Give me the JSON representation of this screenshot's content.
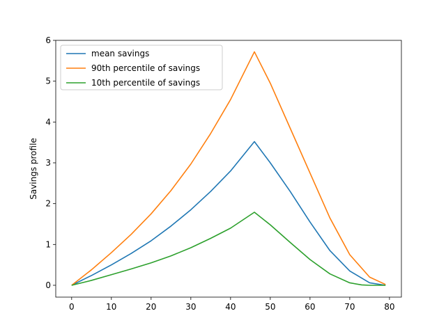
{
  "chart_data": {
    "type": "line",
    "title": "",
    "xlabel": "",
    "ylabel": "Savings profile",
    "xlim": [
      -4,
      83
    ],
    "ylim": [
      -0.29,
      6.0
    ],
    "xticks": [
      0,
      10,
      20,
      30,
      40,
      50,
      60,
      70,
      80
    ],
    "yticks": [
      0,
      1,
      2,
      3,
      4,
      5,
      6
    ],
    "grid": false,
    "legend_position": "upper-left",
    "series": [
      {
        "name": "mean savings",
        "color": "#1f77b4",
        "x": [
          0,
          5,
          10,
          15,
          20,
          25,
          30,
          35,
          40,
          46,
          50,
          55,
          60,
          65,
          70,
          75,
          79
        ],
        "values": [
          0,
          0.24,
          0.5,
          0.78,
          1.09,
          1.45,
          1.85,
          2.3,
          2.8,
          3.52,
          3.0,
          2.3,
          1.55,
          0.85,
          0.35,
          0.06,
          0.0
        ]
      },
      {
        "name": "90th percentile of savings",
        "color": "#ff7f0e",
        "x": [
          0,
          5,
          10,
          15,
          20,
          25,
          30,
          35,
          40,
          46,
          50,
          55,
          60,
          65,
          70,
          75,
          79
        ],
        "values": [
          0,
          0.38,
          0.8,
          1.25,
          1.75,
          2.32,
          2.97,
          3.72,
          4.55,
          5.72,
          4.95,
          3.85,
          2.75,
          1.65,
          0.75,
          0.2,
          0.02
        ]
      },
      {
        "name": "10th percentile of savings",
        "color": "#2ca02c",
        "x": [
          0,
          5,
          10,
          15,
          20,
          25,
          30,
          35,
          40,
          46,
          50,
          55,
          60,
          65,
          70,
          73,
          75,
          79
        ],
        "values": [
          0,
          0.12,
          0.26,
          0.4,
          0.55,
          0.72,
          0.92,
          1.15,
          1.4,
          1.79,
          1.48,
          1.05,
          0.63,
          0.28,
          0.06,
          0.01,
          0.0,
          0.0
        ]
      }
    ]
  }
}
